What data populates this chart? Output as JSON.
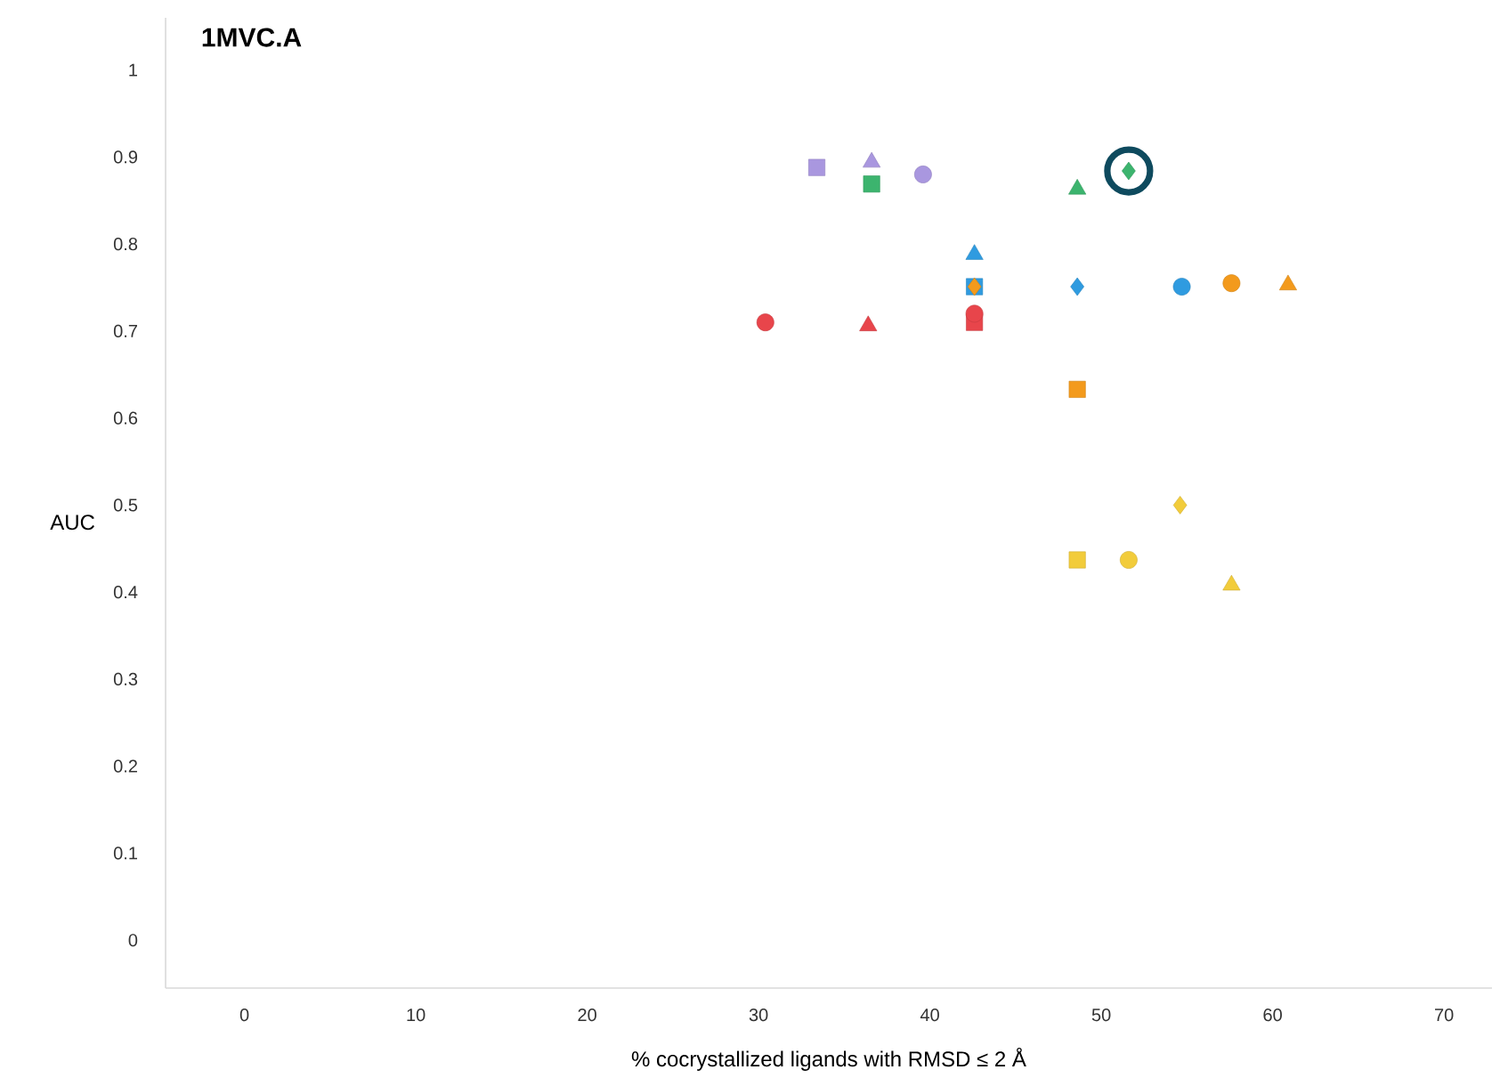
{
  "chart_data": {
    "type": "scatter",
    "title": "1MVC.A",
    "xlabel": "% cocrystallized ligands with RMSD ≤ 2 Å",
    "ylabel": "AUC",
    "xlim": [
      -4.6,
      72.8
    ],
    "ylim": [
      -0.055,
      1.06
    ],
    "xticks": [
      0,
      10,
      20,
      30,
      40,
      50,
      60,
      70
    ],
    "yticks": [
      0,
      0.1,
      0.2,
      0.3,
      0.4,
      0.5,
      0.6,
      0.7,
      0.8,
      0.9,
      1
    ],
    "grid": false,
    "series": [
      {
        "color": "#a997df",
        "marker": "square",
        "x": [
          33.4
        ],
        "values": [
          0.888
        ]
      },
      {
        "color": "#a997df",
        "marker": "triangle",
        "x": [
          36.6
        ],
        "values": [
          0.894
        ]
      },
      {
        "color": "#a997df",
        "marker": "circle",
        "x": [
          39.6
        ],
        "values": [
          0.88
        ]
      },
      {
        "color": "#3cb46e",
        "marker": "square",
        "x": [
          36.6
        ],
        "values": [
          0.869
        ]
      },
      {
        "color": "#3cb46e",
        "marker": "triangle",
        "x": [
          48.6
        ],
        "values": [
          0.863
        ]
      },
      {
        "color": "#3cb46e",
        "marker": "diamond",
        "x": [
          51.6
        ],
        "values": [
          0.884
        ]
      },
      {
        "color": "#2f9be0",
        "marker": "triangle",
        "x": [
          42.6
        ],
        "values": [
          0.788
        ]
      },
      {
        "color": "#2f9be0",
        "marker": "square",
        "x": [
          42.6
        ],
        "values": [
          0.751
        ]
      },
      {
        "color": "#2f9be0",
        "marker": "diamond",
        "x": [
          48.6
        ],
        "values": [
          0.751
        ]
      },
      {
        "color": "#2f9be0",
        "marker": "circle",
        "x": [
          54.7
        ],
        "values": [
          0.751
        ]
      },
      {
        "color": "#e8454b",
        "marker": "square",
        "x": [
          42.6
        ],
        "values": [
          0.71
        ]
      },
      {
        "color": "#e8454b",
        "marker": "circle",
        "x": [
          30.4,
          42.6
        ],
        "values": [
          0.71,
          0.72
        ]
      },
      {
        "color": "#e8454b",
        "marker": "triangle",
        "x": [
          36.4
        ],
        "values": [
          0.706
        ]
      },
      {
        "color": "#f39a1c",
        "marker": "diamond",
        "x": [
          42.6
        ],
        "values": [
          0.751
        ]
      },
      {
        "color": "#f39a1c",
        "marker": "circle",
        "x": [
          57.6
        ],
        "values": [
          0.755
        ]
      },
      {
        "color": "#f39a1c",
        "marker": "triangle",
        "x": [
          60.9
        ],
        "values": [
          0.753
        ]
      },
      {
        "color": "#f39a1c",
        "marker": "square",
        "x": [
          48.6
        ],
        "values": [
          0.633
        ]
      },
      {
        "color": "#f2cc3b",
        "marker": "diamond",
        "x": [
          54.6
        ],
        "values": [
          0.5
        ]
      },
      {
        "color": "#f2cc3b",
        "marker": "square",
        "x": [
          48.6
        ],
        "values": [
          0.437
        ]
      },
      {
        "color": "#f2cc3b",
        "marker": "circle",
        "x": [
          51.6
        ],
        "values": [
          0.437
        ]
      },
      {
        "color": "#f2cc3b",
        "marker": "triangle",
        "x": [
          57.6
        ],
        "values": [
          0.408
        ]
      },
      {
        "type": "bubble",
        "color": "#0e4a5e",
        "x": [
          51.6
        ],
        "values": [
          0.884
        ],
        "sizes": [
          1
        ]
      }
    ]
  }
}
